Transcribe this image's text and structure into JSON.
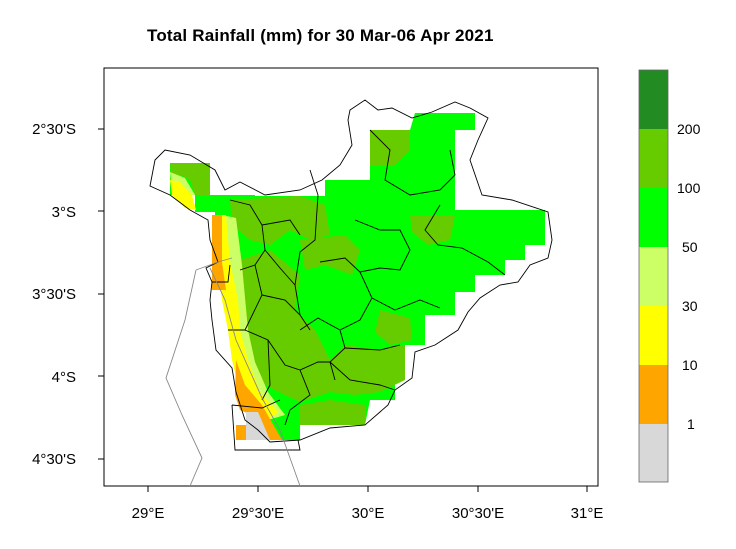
{
  "title": "Total Rainfall (mm) for 30 Mar-06 Apr 2021",
  "map": {
    "lon_ticks": [
      "29°E",
      "29°30'E",
      "30°E",
      "30°30'E",
      "31°E"
    ],
    "lat_ticks": [
      "2°30'S",
      "3°S",
      "3°30'S",
      "4°S",
      "4°30'S"
    ]
  },
  "legend": {
    "classes": [
      {
        "color": "#d8d8d8",
        "label": "1"
      },
      {
        "color": "#ffa500",
        "label": "10"
      },
      {
        "color": "#ffff00",
        "label": "30"
      },
      {
        "color": "#ccff66",
        "label": "50"
      },
      {
        "color": "#00ff00",
        "label": "100"
      },
      {
        "color": "#66cc00",
        "label": "200"
      },
      {
        "color": "#228b22",
        "label": ""
      }
    ]
  }
}
